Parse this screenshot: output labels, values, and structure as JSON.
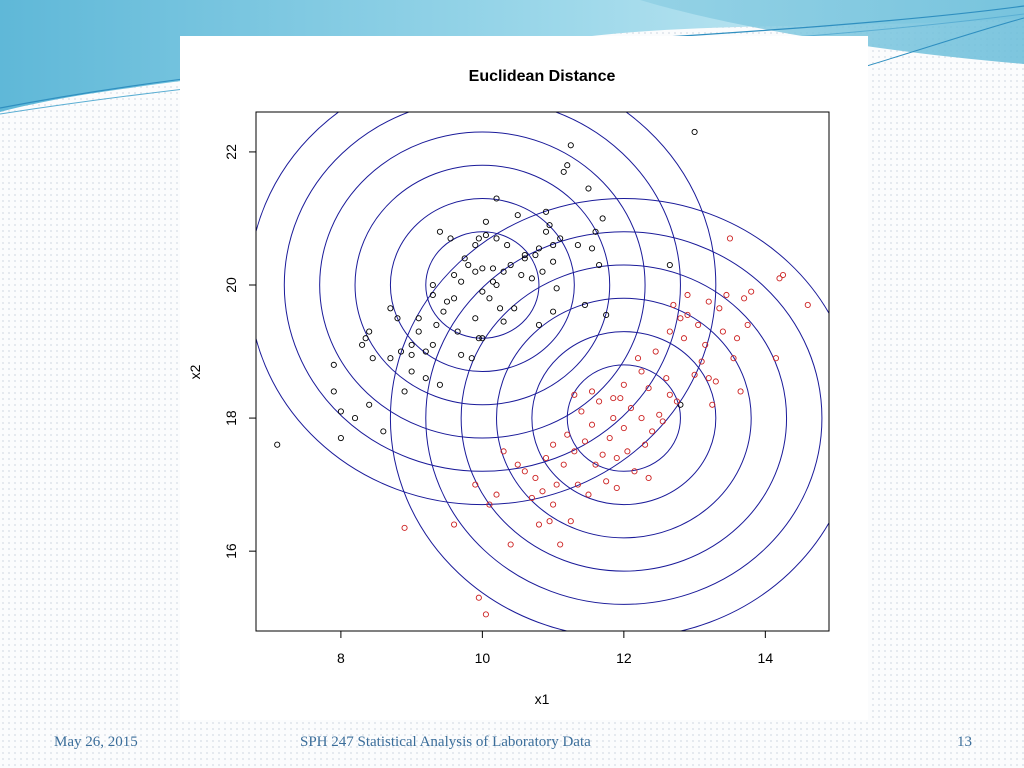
{
  "footer": {
    "date": "May 26, 2015",
    "course": "SPH 247 Statistical Analysis of Laboratory Data",
    "page": "13"
  },
  "colors": {
    "group1_points": "#000000",
    "group2_points": "#cc2222",
    "contours": "#1a1a99",
    "footer_text": "#3a6d9a",
    "header_wave": "#7ecde0"
  },
  "chart_data": {
    "type": "scatter",
    "title": "Euclidean Distance",
    "xlabel": "x1",
    "ylabel": "x2",
    "xlim": [
      6.8,
      14.9
    ],
    "ylim": [
      14.8,
      22.6
    ],
    "xticks": [
      8,
      10,
      12,
      14
    ],
    "yticks": [
      16,
      18,
      20,
      22
    ],
    "grid": false,
    "contours": [
      {
        "center": [
          10,
          20
        ],
        "radii": [
          0.8,
          1.3,
          1.8,
          2.3,
          2.8,
          3.3
        ],
        "color": "#1a1a99"
      },
      {
        "center": [
          12,
          18
        ],
        "radii": [
          0.8,
          1.3,
          1.8,
          2.3,
          2.8,
          3.3
        ],
        "color": "#1a1a99"
      }
    ],
    "series": [
      {
        "color": "#000000",
        "points": [
          [
            7.1,
            17.6
          ],
          [
            7.9,
            18.8
          ],
          [
            7.9,
            18.4
          ],
          [
            8.0,
            18.1
          ],
          [
            8.0,
            17.7
          ],
          [
            8.2,
            18.0
          ],
          [
            8.3,
            19.1
          ],
          [
            8.35,
            19.2
          ],
          [
            8.4,
            19.3
          ],
          [
            8.4,
            18.2
          ],
          [
            8.45,
            18.9
          ],
          [
            8.6,
            17.8
          ],
          [
            8.7,
            19.65
          ],
          [
            8.7,
            18.9
          ],
          [
            8.8,
            19.5
          ],
          [
            8.85,
            19.0
          ],
          [
            8.9,
            18.4
          ],
          [
            9.0,
            19.1
          ],
          [
            9.0,
            18.7
          ],
          [
            9.0,
            18.95
          ],
          [
            9.1,
            19.5
          ],
          [
            9.2,
            18.6
          ],
          [
            9.2,
            19.0
          ],
          [
            9.3,
            20.0
          ],
          [
            9.3,
            19.1
          ],
          [
            9.35,
            19.4
          ],
          [
            9.4,
            18.5
          ],
          [
            9.4,
            20.8
          ],
          [
            9.45,
            19.6
          ],
          [
            9.5,
            19.75
          ],
          [
            9.55,
            20.7
          ],
          [
            9.6,
            20.15
          ],
          [
            9.65,
            19.3
          ],
          [
            9.7,
            20.05
          ],
          [
            9.7,
            18.95
          ],
          [
            9.75,
            20.4
          ],
          [
            9.8,
            20.3
          ],
          [
            9.85,
            18.9
          ],
          [
            9.9,
            19.5
          ],
          [
            9.9,
            20.2
          ],
          [
            9.95,
            20.7
          ],
          [
            10.0,
            19.2
          ],
          [
            10.0,
            19.9
          ],
          [
            10.0,
            20.25
          ],
          [
            10.05,
            20.75
          ],
          [
            10.05,
            20.95
          ],
          [
            10.1,
            19.8
          ],
          [
            10.15,
            20.05
          ],
          [
            10.15,
            20.25
          ],
          [
            10.2,
            20.0
          ],
          [
            10.2,
            21.3
          ],
          [
            10.25,
            19.65
          ],
          [
            10.3,
            20.2
          ],
          [
            10.3,
            19.45
          ],
          [
            10.35,
            20.6
          ],
          [
            10.4,
            20.3
          ],
          [
            10.45,
            19.65
          ],
          [
            10.5,
            21.05
          ],
          [
            10.55,
            20.15
          ],
          [
            10.6,
            20.4
          ],
          [
            10.7,
            20.1
          ],
          [
            10.75,
            20.45
          ],
          [
            10.8,
            20.55
          ],
          [
            10.8,
            19.4
          ],
          [
            10.85,
            20.2
          ],
          [
            10.9,
            20.8
          ],
          [
            10.95,
            20.9
          ],
          [
            11.0,
            20.35
          ],
          [
            11.0,
            19.6
          ],
          [
            11.05,
            19.95
          ],
          [
            11.1,
            20.7
          ],
          [
            11.15,
            21.7
          ],
          [
            11.2,
            21.8
          ],
          [
            11.25,
            22.1
          ],
          [
            11.35,
            20.6
          ],
          [
            11.45,
            19.7
          ],
          [
            11.5,
            21.45
          ],
          [
            11.55,
            20.55
          ],
          [
            11.6,
            20.8
          ],
          [
            11.65,
            20.3
          ],
          [
            11.7,
            21.0
          ],
          [
            11.75,
            19.55
          ],
          [
            12.65,
            20.3
          ],
          [
            12.8,
            18.2
          ],
          [
            13.0,
            22.3
          ],
          [
            11.0,
            20.6
          ],
          [
            10.9,
            21.1
          ],
          [
            10.6,
            20.45
          ],
          [
            9.9,
            20.6
          ],
          [
            9.6,
            19.8
          ],
          [
            10.2,
            20.7
          ],
          [
            9.95,
            19.2
          ],
          [
            9.3,
            19.85
          ],
          [
            9.1,
            19.3
          ]
        ]
      },
      {
        "color": "#cc2222",
        "points": [
          [
            8.9,
            16.35
          ],
          [
            9.6,
            16.4
          ],
          [
            9.9,
            17.0
          ],
          [
            9.95,
            15.3
          ],
          [
            10.05,
            15.05
          ],
          [
            10.1,
            16.7
          ],
          [
            10.2,
            16.85
          ],
          [
            10.3,
            17.5
          ],
          [
            10.4,
            16.1
          ],
          [
            10.5,
            17.3
          ],
          [
            10.6,
            17.2
          ],
          [
            10.7,
            16.8
          ],
          [
            10.75,
            17.1
          ],
          [
            10.8,
            16.4
          ],
          [
            10.85,
            16.9
          ],
          [
            10.9,
            17.4
          ],
          [
            10.95,
            16.45
          ],
          [
            11.0,
            17.6
          ],
          [
            11.0,
            16.7
          ],
          [
            11.05,
            17.0
          ],
          [
            11.1,
            16.1
          ],
          [
            11.15,
            17.3
          ],
          [
            11.2,
            17.75
          ],
          [
            11.25,
            16.45
          ],
          [
            11.3,
            17.5
          ],
          [
            11.3,
            18.35
          ],
          [
            11.35,
            17.0
          ],
          [
            11.4,
            18.1
          ],
          [
            11.45,
            17.65
          ],
          [
            11.5,
            16.85
          ],
          [
            11.55,
            17.9
          ],
          [
            11.6,
            17.3
          ],
          [
            11.65,
            18.25
          ],
          [
            11.7,
            17.45
          ],
          [
            11.75,
            17.05
          ],
          [
            11.8,
            17.7
          ],
          [
            11.85,
            18.0
          ],
          [
            11.9,
            17.4
          ],
          [
            11.95,
            18.3
          ],
          [
            12.0,
            17.85
          ],
          [
            12.05,
            17.5
          ],
          [
            12.1,
            18.15
          ],
          [
            12.15,
            17.2
          ],
          [
            12.2,
            18.9
          ],
          [
            12.25,
            18.7
          ],
          [
            12.3,
            17.6
          ],
          [
            12.35,
            18.45
          ],
          [
            12.4,
            17.8
          ],
          [
            12.45,
            19.0
          ],
          [
            12.5,
            18.05
          ],
          [
            12.55,
            17.95
          ],
          [
            12.6,
            18.6
          ],
          [
            12.65,
            19.3
          ],
          [
            12.7,
            19.7
          ],
          [
            12.75,
            18.25
          ],
          [
            12.8,
            19.5
          ],
          [
            12.85,
            19.2
          ],
          [
            12.9,
            19.85
          ],
          [
            13.0,
            18.65
          ],
          [
            13.05,
            19.4
          ],
          [
            13.1,
            18.85
          ],
          [
            13.15,
            19.1
          ],
          [
            13.2,
            19.75
          ],
          [
            13.25,
            18.2
          ],
          [
            13.3,
            18.55
          ],
          [
            13.35,
            19.65
          ],
          [
            13.4,
            19.3
          ],
          [
            13.45,
            19.85
          ],
          [
            13.5,
            20.7
          ],
          [
            13.55,
            18.9
          ],
          [
            13.6,
            19.2
          ],
          [
            13.65,
            18.4
          ],
          [
            13.7,
            19.8
          ],
          [
            13.75,
            19.4
          ],
          [
            13.8,
            19.9
          ],
          [
            14.15,
            18.9
          ],
          [
            14.2,
            20.1
          ],
          [
            14.25,
            20.15
          ],
          [
            14.6,
            19.7
          ],
          [
            12.9,
            19.55
          ],
          [
            11.85,
            18.3
          ],
          [
            12.0,
            18.5
          ],
          [
            11.55,
            18.4
          ],
          [
            12.25,
            18.0
          ],
          [
            12.35,
            17.1
          ],
          [
            11.9,
            16.95
          ],
          [
            12.65,
            18.35
          ],
          [
            13.2,
            18.6
          ]
        ]
      }
    ]
  }
}
